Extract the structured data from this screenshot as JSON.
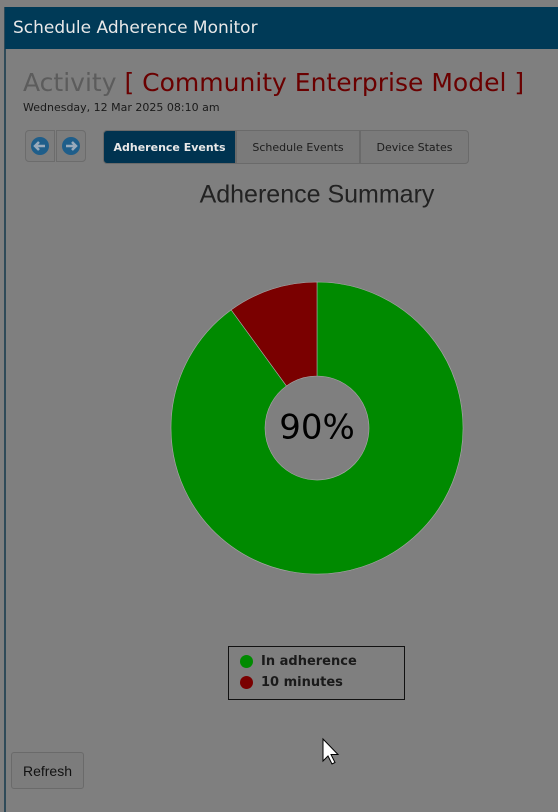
{
  "header": {
    "title": "Schedule Adherence Monitor"
  },
  "activity": {
    "label": "Activity",
    "name": "[ Community Enterprise Model ]",
    "date": "Wednesday, 12 Mar 2025 08:10 am"
  },
  "tabs": [
    "Adherence Events",
    "Schedule Events",
    "Device States"
  ],
  "refresh": "Refresh",
  "chart_data": {
    "type": "pie",
    "title": "Adherence Summary",
    "categories": [
      "In adherence",
      "10 minutes"
    ],
    "values": [
      90,
      10
    ],
    "colors": [
      "#008a00",
      "#7a0000"
    ],
    "center_label": "90%"
  }
}
